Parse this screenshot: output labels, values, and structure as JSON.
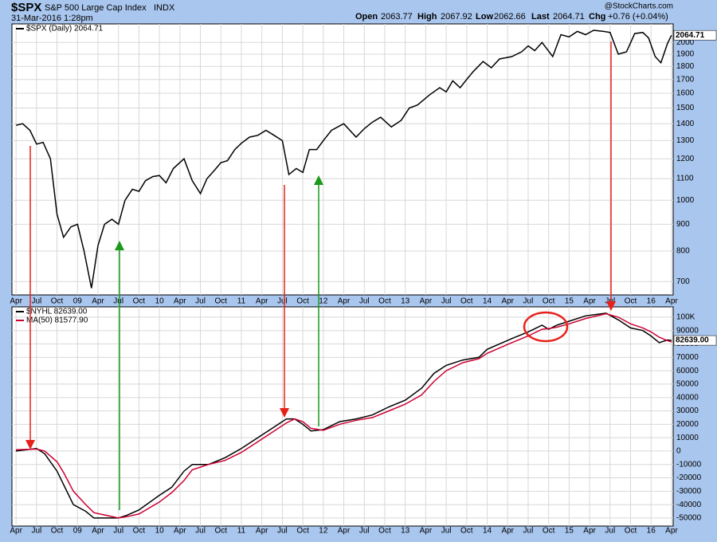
{
  "header": {
    "symbol": "$SPX",
    "name": "S&P 500 Large Cap Index",
    "exchange": "INDX",
    "date": "31-Mar-2016 1:28pm",
    "open_label": "Open",
    "open": "2063.77",
    "high_label": "High",
    "high": "2067.92",
    "low_label": "Low",
    "low": "2062.66",
    "last_label": "Last",
    "last": "2064.71",
    "chg_label": "Chg",
    "chg": "+0.76 (+0.04%)",
    "source": "@StockCharts.com"
  },
  "chart_data": [
    {
      "type": "line",
      "log_scale": true,
      "grid": true,
      "price_tag": "2064.71",
      "x": [
        2008.25,
        2008.33,
        2008.42,
        2008.5,
        2008.58,
        2008.67,
        2008.75,
        2008.83,
        2008.92,
        2009.0,
        2009.08,
        2009.17,
        2009.25,
        2009.33,
        2009.42,
        2009.5,
        2009.58,
        2009.67,
        2009.75,
        2009.83,
        2009.92,
        2010.0,
        2010.08,
        2010.17,
        2010.3,
        2010.4,
        2010.5,
        2010.58,
        2010.67,
        2010.75,
        2010.83,
        2010.92,
        2011.0,
        2011.1,
        2011.2,
        2011.3,
        2011.4,
        2011.5,
        2011.58,
        2011.67,
        2011.75,
        2011.83,
        2011.92,
        2012.0,
        2012.1,
        2012.25,
        2012.4,
        2012.5,
        2012.6,
        2012.7,
        2012.83,
        2012.95,
        2013.05,
        2013.15,
        2013.3,
        2013.42,
        2013.5,
        2013.58,
        2013.67,
        2013.75,
        2013.83,
        2013.95,
        2014.05,
        2014.15,
        2014.3,
        2014.42,
        2014.5,
        2014.58,
        2014.67,
        2014.8,
        2014.9,
        2015.0,
        2015.1,
        2015.2,
        2015.3,
        2015.42,
        2015.5,
        2015.6,
        2015.7,
        2015.8,
        2015.9,
        2015.97,
        2016.05,
        2016.12,
        2016.2,
        2016.25
      ],
      "series": [
        {
          "name": "$SPX (Daily) 2064.71",
          "color": "#000000",
          "values": [
            1390,
            1400,
            1360,
            1280,
            1290,
            1200,
            940,
            850,
            890,
            900,
            800,
            680,
            820,
            900,
            920,
            900,
            1000,
            1050,
            1040,
            1090,
            1110,
            1115,
            1080,
            1150,
            1200,
            1090,
            1030,
            1100,
            1140,
            1180,
            1190,
            1250,
            1285,
            1320,
            1330,
            1360,
            1330,
            1300,
            1120,
            1150,
            1130,
            1250,
            1250,
            1300,
            1360,
            1400,
            1320,
            1370,
            1410,
            1440,
            1380,
            1420,
            1500,
            1520,
            1590,
            1640,
            1610,
            1690,
            1640,
            1700,
            1760,
            1840,
            1790,
            1860,
            1880,
            1920,
            1970,
            1930,
            2000,
            1880,
            2070,
            2050,
            2100,
            2070,
            2110,
            2100,
            2090,
            1900,
            1920,
            2080,
            2090,
            2040,
            1880,
            1830,
            1990,
            2064.71
          ]
        }
      ],
      "xlim": [
        2008.2,
        2016.27
      ],
      "ylim": [
        660,
        2170
      ],
      "yticks": [
        700,
        800,
        900,
        1000,
        1100,
        1200,
        1300,
        1400,
        1500,
        1600,
        1700,
        1800,
        1900,
        2000
      ],
      "xticks": [
        {
          "value": 2008.25,
          "label": "Apr"
        },
        {
          "value": 2008.5,
          "label": "Jul"
        },
        {
          "value": 2008.75,
          "label": "Oct"
        },
        {
          "value": 2009,
          "label": "09"
        },
        {
          "value": 2009.25,
          "label": "Apr"
        },
        {
          "value": 2009.5,
          "label": "Jul"
        },
        {
          "value": 2009.75,
          "label": "Oct"
        },
        {
          "value": 2010,
          "label": "10"
        },
        {
          "value": 2010.25,
          "label": "Apr"
        },
        {
          "value": 2010.5,
          "label": "Jul"
        },
        {
          "value": 2010.75,
          "label": "Oct"
        },
        {
          "value": 2011,
          "label": "11"
        },
        {
          "value": 2011.25,
          "label": "Apr"
        },
        {
          "value": 2011.5,
          "label": "Jul"
        },
        {
          "value": 2011.75,
          "label": "Oct"
        },
        {
          "value": 2012,
          "label": "12"
        },
        {
          "value": 2012.25,
          "label": "Apr"
        },
        {
          "value": 2012.5,
          "label": "Jul"
        },
        {
          "value": 2012.75,
          "label": "Oct"
        },
        {
          "value": 2013,
          "label": "13"
        },
        {
          "value": 2013.25,
          "label": "Apr"
        },
        {
          "value": 2013.5,
          "label": "Jul"
        },
        {
          "value": 2013.75,
          "label": "Oct"
        },
        {
          "value": 2014,
          "label": "14"
        },
        {
          "value": 2014.25,
          "label": "Apr"
        },
        {
          "value": 2014.5,
          "label": "Jul"
        },
        {
          "value": 2014.75,
          "label": "Oct"
        },
        {
          "value": 2015,
          "label": "15"
        },
        {
          "value": 2015.25,
          "label": "Apr"
        },
        {
          "value": 2015.5,
          "label": "Jul"
        },
        {
          "value": 2015.75,
          "label": "Oct"
        },
        {
          "value": 2016,
          "label": "16"
        },
        {
          "value": 2016.25,
          "label": "Apr"
        }
      ]
    },
    {
      "type": "line",
      "log_scale": false,
      "grid": true,
      "price_tag": "82639.00",
      "x": [
        2008.25,
        2008.5,
        2008.6,
        2008.75,
        2008.83,
        2008.95,
        2009.1,
        2009.2,
        2009.5,
        2009.6,
        2009.75,
        2010.0,
        2010.15,
        2010.3,
        2010.4,
        2010.6,
        2010.8,
        2011.0,
        2011.2,
        2011.4,
        2011.55,
        2011.65,
        2011.75,
        2011.85,
        2012.0,
        2012.2,
        2012.4,
        2012.6,
        2012.8,
        2013.0,
        2013.2,
        2013.35,
        2013.5,
        2013.7,
        2013.9,
        2014.0,
        2014.3,
        2014.5,
        2014.67,
        2014.75,
        2014.85,
        2015.0,
        2015.2,
        2015.45,
        2015.6,
        2015.75,
        2015.9,
        2016.0,
        2016.1,
        2016.2,
        2016.25
      ],
      "series": [
        {
          "name": "$NYHL 82639.00",
          "color": "#000000",
          "values": [
            0,
            2000,
            -2000,
            -15000,
            -25000,
            -40000,
            -45000,
            -50000,
            -50000,
            -48000,
            -44000,
            -33000,
            -27000,
            -15000,
            -10000,
            -10000,
            -5000,
            2000,
            10000,
            18000,
            24000,
            24000,
            20000,
            15000,
            16000,
            22000,
            24000,
            27000,
            33000,
            38000,
            47000,
            58000,
            64000,
            68000,
            70000,
            76000,
            84000,
            89000,
            94000,
            91000,
            94000,
            97000,
            101000,
            103000,
            98000,
            92000,
            90000,
            86000,
            81000,
            83000,
            82639
          ]
        },
        {
          "name": "MA(50) 81577.90",
          "color": "#cc0033",
          "values": [
            1000,
            1500,
            0,
            -8000,
            -16000,
            -30000,
            -40000,
            -46000,
            -50000,
            -49000,
            -47000,
            -38000,
            -31000,
            -22000,
            -14000,
            -10000,
            -7000,
            -1000,
            7000,
            15000,
            21000,
            24000,
            22000,
            17000,
            15500,
            20000,
            23000,
            25000,
            30000,
            35000,
            42000,
            52000,
            60000,
            66000,
            69000,
            73000,
            81000,
            86000,
            91000,
            91500,
            92500,
            95000,
            99000,
            102500,
            100000,
            95000,
            92000,
            89000,
            85000,
            82500,
            81577.9
          ]
        }
      ],
      "xlim": [
        2008.2,
        2016.27
      ],
      "ylim": [
        -56000,
        107700
      ],
      "yticks": [
        -50000,
        -40000,
        -30000,
        -20000,
        -10000,
        0,
        10000,
        20000,
        30000,
        40000,
        50000,
        60000,
        70000,
        80000,
        90000,
        {
          "value": 100000,
          "label": "100K"
        }
      ],
      "xticks": [
        {
          "value": 2008.25,
          "label": "Apr"
        },
        {
          "value": 2008.5,
          "label": "Jul"
        },
        {
          "value": 2008.75,
          "label": "Oct"
        },
        {
          "value": 2009,
          "label": "09"
        },
        {
          "value": 2009.25,
          "label": "Apr"
        },
        {
          "value": 2009.5,
          "label": "Jul"
        },
        {
          "value": 2009.75,
          "label": "Oct"
        },
        {
          "value": 2010,
          "label": "10"
        },
        {
          "value": 2010.25,
          "label": "Apr"
        },
        {
          "value": 2010.5,
          "label": "Jul"
        },
        {
          "value": 2010.75,
          "label": "Oct"
        },
        {
          "value": 2011,
          "label": "11"
        },
        {
          "value": 2011.25,
          "label": "Apr"
        },
        {
          "value": 2011.5,
          "label": "Jul"
        },
        {
          "value": 2011.75,
          "label": "Oct"
        },
        {
          "value": 2012,
          "label": "12"
        },
        {
          "value": 2012.25,
          "label": "Apr"
        },
        {
          "value": 2012.5,
          "label": "Jul"
        },
        {
          "value": 2012.75,
          "label": "Oct"
        },
        {
          "value": 2013,
          "label": "13"
        },
        {
          "value": 2013.25,
          "label": "Apr"
        },
        {
          "value": 2013.5,
          "label": "Jul"
        },
        {
          "value": 2013.75,
          "label": "Oct"
        },
        {
          "value": 2014,
          "label": "14"
        },
        {
          "value": 2014.25,
          "label": "Apr"
        },
        {
          "value": 2014.5,
          "label": "Jul"
        },
        {
          "value": 2014.75,
          "label": "Oct"
        },
        {
          "value": 2015,
          "label": "15"
        },
        {
          "value": 2015.25,
          "label": "Apr"
        },
        {
          "value": 2015.5,
          "label": "Jul"
        },
        {
          "value": 2015.75,
          "label": "Oct"
        },
        {
          "value": 2016,
          "label": "16"
        },
        {
          "value": 2016.25,
          "label": "Apr"
        }
      ]
    }
  ]
}
